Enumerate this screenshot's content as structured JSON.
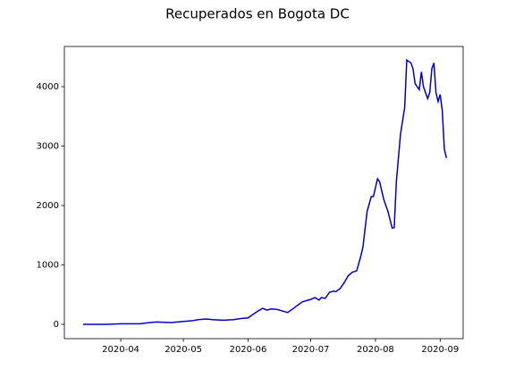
{
  "chart_data": {
    "type": "line",
    "title": "Recuperados en Bogota DC",
    "x": [
      "2020-03-14",
      "2020-03-25",
      "2020-04-01",
      "2020-04-10",
      "2020-04-15",
      "2020-04-18",
      "2020-04-25",
      "2020-05-01",
      "2020-05-05",
      "2020-05-08",
      "2020-05-12",
      "2020-05-15",
      "2020-05-20",
      "2020-05-25",
      "2020-05-29",
      "2020-06-01",
      "2020-06-03",
      "2020-06-06",
      "2020-06-08",
      "2020-06-10",
      "2020-06-12",
      "2020-06-15",
      "2020-06-18",
      "2020-06-20",
      "2020-06-22",
      "2020-06-25",
      "2020-06-27",
      "2020-07-01",
      "2020-07-03",
      "2020-07-05",
      "2020-07-06",
      "2020-07-08",
      "2020-07-10",
      "2020-07-12",
      "2020-07-13",
      "2020-07-15",
      "2020-07-17",
      "2020-07-19",
      "2020-07-21",
      "2020-07-23",
      "2020-07-25",
      "2020-07-26",
      "2020-07-28",
      "2020-07-30",
      "2020-07-31",
      "2020-08-02",
      "2020-08-03",
      "2020-08-04",
      "2020-08-05",
      "2020-08-07",
      "2020-08-09",
      "2020-08-10",
      "2020-08-11",
      "2020-08-13",
      "2020-08-15",
      "2020-08-16",
      "2020-08-18",
      "2020-08-19",
      "2020-08-20",
      "2020-08-22",
      "2020-08-23",
      "2020-08-24",
      "2020-08-26",
      "2020-08-27",
      "2020-08-28",
      "2020-08-29",
      "2020-08-30",
      "2020-08-31",
      "2020-09-01",
      "2020-09-02",
      "2020-09-03",
      "2020-09-04"
    ],
    "series": [
      {
        "color": "#0000cc",
        "values": [
          0,
          0,
          10,
          10,
          30,
          40,
          30,
          50,
          60,
          80,
          90,
          80,
          70,
          80,
          100,
          110,
          160,
          230,
          270,
          240,
          260,
          250,
          220,
          200,
          250,
          330,
          380,
          420,
          450,
          410,
          450,
          440,
          540,
          560,
          550,
          600,
          700,
          820,
          880,
          900,
          1150,
          1300,
          1900,
          2150,
          2150,
          2450,
          2400,
          2250,
          2100,
          1900,
          1620,
          1630,
          2400,
          3200,
          3650,
          4450,
          4400,
          4300,
          4050,
          3950,
          4250,
          4000,
          3800,
          3900,
          4300,
          4400,
          3900,
          3750,
          3870,
          3600,
          2950,
          2800
        ]
      }
    ],
    "xlim": [
      "2020-03-05",
      "2020-09-12"
    ],
    "xticks": [
      {
        "value": "2020-04-01",
        "label": "2020-04"
      },
      {
        "value": "2020-05-01",
        "label": "2020-05"
      },
      {
        "value": "2020-06-01",
        "label": "2020-06"
      },
      {
        "value": "2020-07-01",
        "label": "2020-07"
      },
      {
        "value": "2020-08-01",
        "label": "2020-08"
      },
      {
        "value": "2020-09-01",
        "label": "2020-09"
      }
    ],
    "ylim": [
      -240,
      4677
    ],
    "yticks": [
      0,
      1000,
      2000,
      3000,
      4000
    ],
    "grid": false
  }
}
